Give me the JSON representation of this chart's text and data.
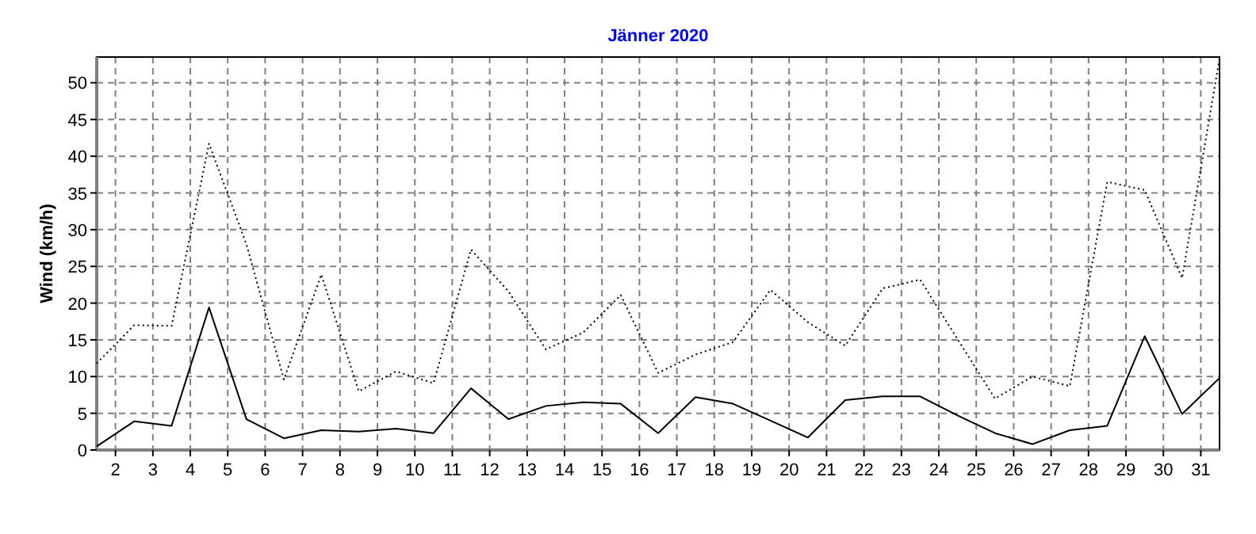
{
  "chart_data": {
    "type": "line",
    "title": "Jänner 2020",
    "ylabel": "Wind (km/h)",
    "x": [
      1.5,
      2.5,
      3.5,
      4.5,
      5.5,
      6.5,
      7.5,
      8.5,
      9.5,
      10.5,
      11.5,
      12.5,
      13.5,
      14.5,
      15.5,
      16.5,
      17.5,
      18.5,
      19.5,
      20.5,
      21.5,
      22.5,
      23.5,
      24.5,
      25.5,
      26.5,
      27.5,
      28.5,
      29.5,
      30.5,
      31.5
    ],
    "xlim": [
      1.5,
      31.5
    ],
    "xticks": [
      2,
      3,
      4,
      5,
      6,
      7,
      8,
      9,
      10,
      11,
      12,
      13,
      14,
      15,
      16,
      17,
      18,
      19,
      20,
      21,
      22,
      23,
      24,
      25,
      26,
      27,
      28,
      29,
      30,
      31
    ],
    "ylim": [
      0,
      53.5
    ],
    "yticks": [
      0,
      5,
      10,
      15,
      20,
      25,
      30,
      35,
      40,
      45,
      50
    ],
    "grid": true,
    "marker": "none",
    "series": [
      {
        "color": "#000000",
        "line_style": "dotted",
        "values": [
          11.8,
          17.0,
          16.9,
          41.7,
          28.0,
          9.6,
          23.9,
          8.0,
          10.7,
          9.1,
          27.3,
          21.6,
          13.7,
          16.0,
          21.1,
          10.5,
          13.0,
          14.7,
          21.8,
          17.4,
          14.2,
          22.0,
          23.2,
          15.1,
          7.0,
          10.0,
          8.7,
          36.5,
          35.4,
          23.4,
          53.3
        ]
      },
      {
        "color": "#000000",
        "line_style": "solid",
        "values": [
          0.5,
          3.9,
          3.3,
          19.4,
          4.2,
          1.6,
          2.7,
          2.5,
          2.9,
          2.3,
          8.4,
          4.2,
          6.0,
          6.5,
          6.3,
          2.3,
          7.2,
          6.3,
          4.0,
          1.7,
          6.8,
          7.3,
          7.3,
          4.7,
          2.3,
          0.8,
          2.7,
          3.3,
          15.5,
          4.9,
          9.8
        ]
      }
    ]
  }
}
